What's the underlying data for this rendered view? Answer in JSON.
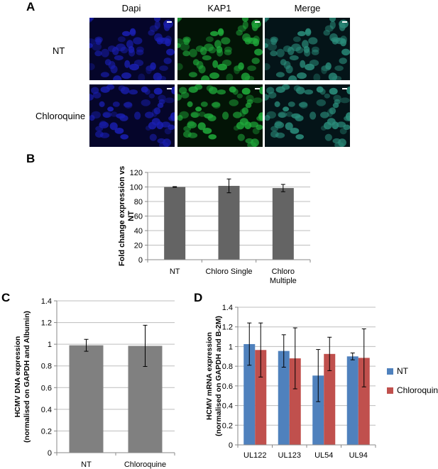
{
  "panel_a": {
    "letter": "A",
    "columns": [
      "Dapi",
      "KAP1",
      "Merge"
    ],
    "rows": [
      "NT",
      "Chloroquine"
    ],
    "colors": {
      "dapi": "#1a1fb0",
      "kap1": "#1fa83a",
      "merge": "#2a8c7a"
    }
  },
  "panel_b": {
    "letter": "B"
  },
  "panel_c": {
    "letter": "C"
  },
  "panel_d": {
    "letter": "D"
  },
  "chart_data": [
    {
      "panel": "B",
      "type": "bar",
      "categories": [
        "NT",
        "Chloro Single",
        "Chloro Multiple"
      ],
      "category_lines": [
        [
          "NT"
        ],
        [
          "Chloro Single"
        ],
        [
          "Chloro",
          "Multiple"
        ]
      ],
      "series": [
        {
          "values": [
            100,
            101.5,
            98.5
          ],
          "errors": [
            0.5,
            9.5,
            5
          ],
          "color": "#646464"
        }
      ],
      "ylabel": "Fold change expression vs NT",
      "ylabel_lines": [
        "Fold change expression vs",
        "NT"
      ],
      "ylim": [
        0,
        120
      ],
      "yticks": [
        0,
        20,
        40,
        60,
        80,
        100,
        120
      ],
      "ytick_labels": [
        "0",
        "20",
        "40",
        "60",
        "80",
        "100",
        "120"
      ],
      "grid": true
    },
    {
      "panel": "C",
      "type": "bar",
      "categories": [
        "NT",
        "Chloroquine"
      ],
      "series": [
        {
          "values": [
            0.99,
            0.985
          ],
          "errors": [
            0.055,
            0.19
          ],
          "color": "#808080"
        }
      ],
      "ylabel": "HCMV DNA expression (normalised on GAPDH and Albumin)",
      "ylabel_lines": [
        "HCMV DNA expression",
        "(normalised on GAPDH and Albumin)"
      ],
      "ylim": [
        0,
        1.4
      ],
      "yticks": [
        0,
        0.2,
        0.4,
        0.6,
        0.8,
        1,
        1.2,
        1.4
      ],
      "ytick_labels": [
        "0",
        "0.2",
        "0.4",
        "0.6",
        "0.8",
        "1",
        "1.2",
        "1.4"
      ],
      "grid": true
    },
    {
      "panel": "D",
      "type": "bar",
      "categories": [
        "UL122",
        "UL123",
        "UL54",
        "UL94"
      ],
      "series": [
        {
          "name": "NT",
          "values": [
            1.025,
            0.955,
            0.705,
            0.9
          ],
          "errors": [
            0.215,
            0.165,
            0.265,
            0.035
          ],
          "color": "#4f81bd"
        },
        {
          "name": "Chloroquine",
          "values": [
            0.965,
            0.88,
            0.925,
            0.885
          ],
          "errors": [
            0.275,
            0.31,
            0.17,
            0.295
          ],
          "color": "#c0504d"
        }
      ],
      "ylabel": "HCMV mRNA expression (normalised on GAPDH and B-2M)",
      "ylabel_lines": [
        "HCMV mRNA expression",
        "(normalised on GAPDH and B-2M)"
      ],
      "ylim": [
        0,
        1.4
      ],
      "yticks": [
        0,
        0.2,
        0.4,
        0.6,
        0.8,
        1,
        1.2,
        1.4
      ],
      "ytick_labels": [
        "0",
        "0.2",
        "0.4",
        "0.6",
        "0.8",
        "1",
        "1.2",
        "1.4"
      ],
      "grid": true,
      "legend": "right"
    }
  ]
}
